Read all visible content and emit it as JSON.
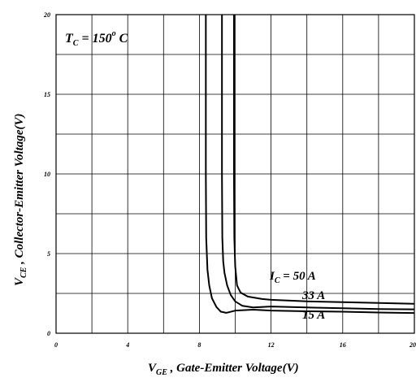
{
  "chart_data": {
    "type": "line",
    "xlabel": {
      "main": "V",
      "sub": "GE",
      "rest": " , Gate-Emitter Voltage(V)"
    },
    "ylabel": {
      "main": "V",
      "sub": "CE",
      "rest": " , Collector-Emitter Voltage(V)"
    },
    "xlim": [
      0,
      20
    ],
    "ylim": [
      0,
      20
    ],
    "xticks": [
      0,
      4,
      8,
      12,
      16,
      20
    ],
    "yticks": [
      0,
      5,
      10,
      15,
      20
    ],
    "xtick_labels": [
      "0",
      "4",
      "8",
      "12",
      "16",
      "20"
    ],
    "ytick_labels": [
      "0",
      "5",
      "10",
      "15",
      "20"
    ],
    "x_minor_step": 2,
    "y_minor_step": 2.5,
    "grid": true,
    "condition": {
      "main": "T",
      "sub": "C",
      "rest": " = 150",
      "sup": "o",
      "unit": " C"
    },
    "series": [
      {
        "name": "15 A",
        "label": {
          "prefix": "",
          "text": "15 A"
        },
        "points": [
          [
            8.36,
            20
          ],
          [
            8.36,
            10
          ],
          [
            8.38,
            6
          ],
          [
            8.45,
            4
          ],
          [
            8.55,
            3.0
          ],
          [
            8.7,
            2.2
          ],
          [
            8.95,
            1.65
          ],
          [
            9.2,
            1.35
          ],
          [
            9.5,
            1.28
          ],
          [
            10.0,
            1.42
          ],
          [
            11,
            1.48
          ],
          [
            12,
            1.42
          ],
          [
            14,
            1.38
          ],
          [
            16,
            1.35
          ],
          [
            18,
            1.3
          ],
          [
            20,
            1.27
          ]
        ]
      },
      {
        "name": "33 A",
        "label": {
          "prefix": "",
          "text": "33 A"
        },
        "points": [
          [
            9.26,
            20
          ],
          [
            9.26,
            10
          ],
          [
            9.28,
            6
          ],
          [
            9.33,
            4.5
          ],
          [
            9.4,
            3.8
          ],
          [
            9.55,
            3.0
          ],
          [
            9.75,
            2.4
          ],
          [
            10.0,
            2.0
          ],
          [
            10.4,
            1.72
          ],
          [
            11,
            1.62
          ],
          [
            12,
            1.68
          ],
          [
            14,
            1.62
          ],
          [
            16,
            1.57
          ],
          [
            18,
            1.52
          ],
          [
            20,
            1.5
          ]
        ]
      },
      {
        "name": "50 A",
        "label": {
          "prefix": "I",
          "sub": "C",
          "text": " = 50 A"
        },
        "points": [
          [
            9.93,
            20
          ],
          [
            9.93,
            10
          ],
          [
            9.95,
            6
          ],
          [
            10.0,
            4.2
          ],
          [
            10.1,
            3.0
          ],
          [
            10.3,
            2.55
          ],
          [
            10.7,
            2.3
          ],
          [
            11.5,
            2.15
          ],
          [
            12,
            2.1
          ],
          [
            14,
            2.0
          ],
          [
            16,
            1.95
          ],
          [
            18,
            1.9
          ],
          [
            20,
            1.85
          ]
        ]
      }
    ]
  }
}
